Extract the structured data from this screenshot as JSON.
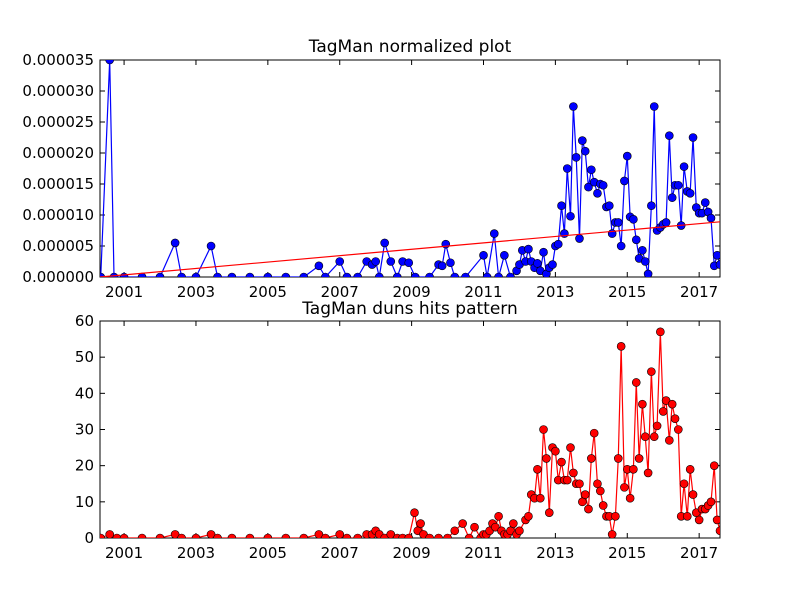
{
  "chart_data": [
    {
      "type": "line",
      "title": "TagMan normalized plot",
      "xlabel": "",
      "ylabel": "",
      "xlim": [
        2000.33,
        2017.58
      ],
      "ylim": [
        0,
        3.5e-05
      ],
      "xticks": [
        2001,
        2003,
        2005,
        2007,
        2009,
        2011,
        2013,
        2015,
        2017
      ],
      "yticks": [
        0,
        5e-06,
        1e-05,
        1.5e-05,
        2e-05,
        2.5e-05,
        3e-05,
        3.5e-05
      ],
      "ytick_labels": [
        "0.000000",
        "0.000005",
        "0.000010",
        "0.000015",
        "0.000020",
        "0.000025",
        "0.000030",
        "0.000035"
      ],
      "colors": {
        "series": "#0000ff",
        "trend": "#ff0000",
        "marker_edge": "#000000"
      },
      "grid": false,
      "series": [
        {
          "points": [
            [
              2000.35,
              0
            ],
            [
              2000.6,
              3.5e-05
            ],
            [
              2000.72,
              0
            ],
            [
              2001.0,
              0
            ],
            [
              2001.5,
              0
            ],
            [
              2002.0,
              0
            ],
            [
              2002.42,
              5.5e-06
            ],
            [
              2002.6,
              0
            ],
            [
              2003.0,
              0
            ],
            [
              2003.42,
              5e-06
            ],
            [
              2003.6,
              0
            ],
            [
              2004.0,
              0
            ],
            [
              2004.5,
              0
            ],
            [
              2005.0,
              0
            ],
            [
              2005.5,
              0
            ],
            [
              2006.0,
              0
            ],
            [
              2006.42,
              1.8e-06
            ],
            [
              2006.6,
              0
            ],
            [
              2007.0,
              2.5e-06
            ],
            [
              2007.2,
              0
            ],
            [
              2007.5,
              0
            ],
            [
              2007.75,
              2.5e-06
            ],
            [
              2007.9,
              2e-06
            ],
            [
              2008.0,
              2.5e-06
            ],
            [
              2008.1,
              0
            ],
            [
              2008.25,
              5.5e-06
            ],
            [
              2008.42,
              2.5e-06
            ],
            [
              2008.6,
              0
            ],
            [
              2008.75,
              2.5e-06
            ],
            [
              2008.92,
              2.3e-06
            ],
            [
              2009.1,
              0
            ],
            [
              2009.5,
              0
            ],
            [
              2009.75,
              2e-06
            ],
            [
              2009.85,
              1.8e-06
            ],
            [
              2009.95,
              5.3e-06
            ],
            [
              2010.08,
              2.3e-06
            ],
            [
              2010.2,
              0
            ],
            [
              2010.5,
              0
            ],
            [
              2011.0,
              3.5e-06
            ],
            [
              2011.1,
              0
            ],
            [
              2011.3,
              7e-06
            ],
            [
              2011.42,
              0
            ],
            [
              2011.58,
              3.5e-06
            ],
            [
              2011.75,
              0
            ],
            [
              2011.92,
              1e-06
            ],
            [
              2012.0,
              2e-06
            ],
            [
              2012.08,
              4.3e-06
            ],
            [
              2012.17,
              2.5e-06
            ],
            [
              2012.25,
              4.5e-06
            ],
            [
              2012.33,
              2.5e-06
            ],
            [
              2012.42,
              1.5e-06
            ],
            [
              2012.5,
              2.2e-06
            ],
            [
              2012.58,
              1e-06
            ],
            [
              2012.67,
              4e-06
            ],
            [
              2012.75,
              5e-07
            ],
            [
              2012.83,
              1.5e-06
            ],
            [
              2012.92,
              2e-06
            ],
            [
              2013.0,
              5e-06
            ],
            [
              2013.08,
              5.3e-06
            ],
            [
              2013.17,
              1.15e-05
            ],
            [
              2013.25,
              7e-06
            ],
            [
              2013.33,
              1.75e-05
            ],
            [
              2013.42,
              9.8e-06
            ],
            [
              2013.5,
              2.75e-05
            ],
            [
              2013.58,
              1.93e-05
            ],
            [
              2013.67,
              6.2e-06
            ],
            [
              2013.75,
              2.2e-05
            ],
            [
              2013.83,
              2.03e-05
            ],
            [
              2013.92,
              1.45e-05
            ],
            [
              2014.0,
              1.73e-05
            ],
            [
              2014.08,
              1.53e-05
            ],
            [
              2014.17,
              1.35e-05
            ],
            [
              2014.25,
              1.5e-05
            ],
            [
              2014.33,
              1.48e-05
            ],
            [
              2014.42,
              1.13e-05
            ],
            [
              2014.5,
              1.15e-05
            ],
            [
              2014.58,
              7e-06
            ],
            [
              2014.67,
              8.8e-06
            ],
            [
              2014.75,
              8.8e-06
            ],
            [
              2014.83,
              5e-06
            ],
            [
              2014.92,
              1.55e-05
            ],
            [
              2015.0,
              1.95e-05
            ],
            [
              2015.08,
              9.7e-06
            ],
            [
              2015.17,
              9.3e-06
            ],
            [
              2015.25,
              6e-06
            ],
            [
              2015.33,
              3e-06
            ],
            [
              2015.42,
              4.3e-06
            ],
            [
              2015.5,
              2.5e-06
            ],
            [
              2015.58,
              5e-07
            ],
            [
              2015.67,
              1.15e-05
            ],
            [
              2015.75,
              2.75e-05
            ],
            [
              2015.83,
              7.5e-06
            ],
            [
              2015.92,
              8e-06
            ],
            [
              2016.0,
              8.5e-06
            ],
            [
              2016.08,
              8.8e-06
            ],
            [
              2016.17,
              2.28e-05
            ],
            [
              2016.25,
              1.28e-05
            ],
            [
              2016.33,
              1.48e-05
            ],
            [
              2016.42,
              1.48e-05
            ],
            [
              2016.5,
              8.3e-06
            ],
            [
              2016.58,
              1.78e-05
            ],
            [
              2016.67,
              1.38e-05
            ],
            [
              2016.75,
              1.35e-05
            ],
            [
              2016.83,
              2.25e-05
            ],
            [
              2016.92,
              1.12e-05
            ],
            [
              2017.0,
              1.03e-05
            ],
            [
              2017.08,
              1.03e-05
            ],
            [
              2017.17,
              1.2e-05
            ],
            [
              2017.25,
              1.05e-05
            ],
            [
              2017.33,
              9.5e-06
            ],
            [
              2017.42,
              1.8e-06
            ],
            [
              2017.5,
              3.5e-06
            ],
            [
              2017.58,
              2e-06
            ]
          ]
        },
        {
          "line": true,
          "points": [
            [
              2000.33,
              0
            ],
            [
              2017.58,
              8.9e-06
            ]
          ]
        }
      ]
    },
    {
      "type": "line",
      "title": "TagMan duns hits pattern",
      "xlabel": "",
      "ylabel": "",
      "xlim": [
        2000.33,
        2017.58
      ],
      "ylim": [
        0,
        60
      ],
      "xticks": [
        2001,
        2003,
        2005,
        2007,
        2009,
        2011,
        2013,
        2015,
        2017
      ],
      "yticks": [
        0,
        10,
        20,
        30,
        40,
        50,
        60
      ],
      "colors": {
        "series": "#ff0000",
        "marker_edge": "#000000"
      },
      "grid": false,
      "series": [
        {
          "points": [
            [
              2000.35,
              0
            ],
            [
              2000.6,
              1
            ],
            [
              2000.8,
              0
            ],
            [
              2001.0,
              0
            ],
            [
              2001.5,
              0
            ],
            [
              2002.0,
              0
            ],
            [
              2002.42,
              1
            ],
            [
              2002.6,
              0
            ],
            [
              2003.0,
              0
            ],
            [
              2003.42,
              1
            ],
            [
              2003.6,
              0
            ],
            [
              2004.0,
              0
            ],
            [
              2004.5,
              0
            ],
            [
              2005.0,
              0
            ],
            [
              2005.5,
              0
            ],
            [
              2006.0,
              0
            ],
            [
              2006.42,
              1
            ],
            [
              2006.6,
              0
            ],
            [
              2007.0,
              1
            ],
            [
              2007.2,
              0
            ],
            [
              2007.5,
              0
            ],
            [
              2007.75,
              1
            ],
            [
              2007.9,
              1
            ],
            [
              2008.0,
              2
            ],
            [
              2008.1,
              1
            ],
            [
              2008.25,
              0
            ],
            [
              2008.42,
              1
            ],
            [
              2008.6,
              0
            ],
            [
              2008.75,
              0
            ],
            [
              2008.92,
              0
            ],
            [
              2009.08,
              7
            ],
            [
              2009.17,
              2
            ],
            [
              2009.25,
              4
            ],
            [
              2009.33,
              1
            ],
            [
              2009.5,
              0
            ],
            [
              2009.75,
              0
            ],
            [
              2010.0,
              0
            ],
            [
              2010.2,
              2
            ],
            [
              2010.42,
              4
            ],
            [
              2010.6,
              0
            ],
            [
              2010.75,
              3
            ],
            [
              2010.92,
              0
            ],
            [
              2011.0,
              1
            ],
            [
              2011.08,
              1
            ],
            [
              2011.17,
              2
            ],
            [
              2011.25,
              4
            ],
            [
              2011.33,
              3
            ],
            [
              2011.42,
              6
            ],
            [
              2011.5,
              2
            ],
            [
              2011.58,
              1
            ],
            [
              2011.67,
              1
            ],
            [
              2011.75,
              2
            ],
            [
              2011.83,
              4
            ],
            [
              2011.92,
              1
            ],
            [
              2012.0,
              2
            ],
            [
              2012.17,
              5
            ],
            [
              2012.25,
              6
            ],
            [
              2012.33,
              12
            ],
            [
              2012.42,
              11
            ],
            [
              2012.5,
              19
            ],
            [
              2012.58,
              11
            ],
            [
              2012.67,
              30
            ],
            [
              2012.75,
              22
            ],
            [
              2012.83,
              7
            ],
            [
              2012.92,
              25
            ],
            [
              2013.0,
              24
            ],
            [
              2013.08,
              16
            ],
            [
              2013.17,
              21
            ],
            [
              2013.25,
              16
            ],
            [
              2013.33,
              16
            ],
            [
              2013.42,
              25
            ],
            [
              2013.5,
              18
            ],
            [
              2013.58,
              15
            ],
            [
              2013.67,
              15
            ],
            [
              2013.75,
              10
            ],
            [
              2013.83,
              12
            ],
            [
              2013.92,
              8
            ],
            [
              2014.0,
              22
            ],
            [
              2014.08,
              29
            ],
            [
              2014.17,
              15
            ],
            [
              2014.25,
              13
            ],
            [
              2014.33,
              9
            ],
            [
              2014.42,
              6
            ],
            [
              2014.5,
              6
            ],
            [
              2014.58,
              1
            ],
            [
              2014.67,
              6
            ],
            [
              2014.75,
              22
            ],
            [
              2014.83,
              53
            ],
            [
              2014.92,
              14
            ],
            [
              2015.0,
              19
            ],
            [
              2015.08,
              11
            ],
            [
              2015.17,
              19
            ],
            [
              2015.25,
              43
            ],
            [
              2015.33,
              22
            ],
            [
              2015.42,
              37
            ],
            [
              2015.5,
              28
            ],
            [
              2015.58,
              18
            ],
            [
              2015.67,
              46
            ],
            [
              2015.75,
              28
            ],
            [
              2015.83,
              31
            ],
            [
              2015.92,
              57
            ],
            [
              2016.0,
              35
            ],
            [
              2016.08,
              38
            ],
            [
              2016.17,
              27
            ],
            [
              2016.25,
              37
            ],
            [
              2016.33,
              33
            ],
            [
              2016.42,
              30
            ],
            [
              2016.5,
              6
            ],
            [
              2016.58,
              15
            ],
            [
              2016.67,
              6
            ],
            [
              2016.75,
              19
            ],
            [
              2016.83,
              12
            ],
            [
              2016.92,
              7
            ],
            [
              2017.0,
              5
            ],
            [
              2017.08,
              8
            ],
            [
              2017.17,
              8
            ],
            [
              2017.25,
              9
            ],
            [
              2017.33,
              10
            ],
            [
              2017.42,
              20
            ],
            [
              2017.5,
              5
            ],
            [
              2017.58,
              2
            ]
          ]
        }
      ]
    }
  ]
}
